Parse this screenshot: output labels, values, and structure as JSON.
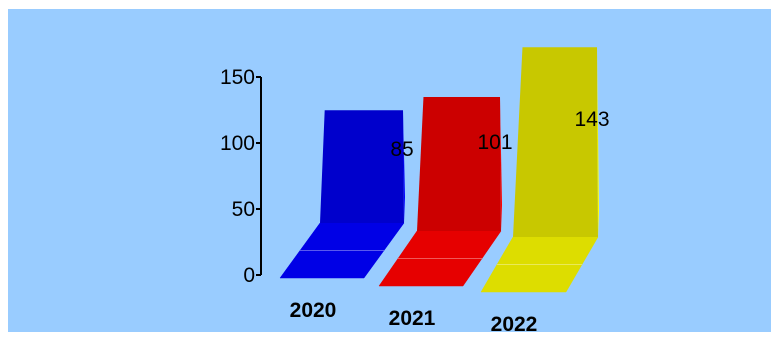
{
  "chart_data": {
    "type": "bar",
    "title": "",
    "xlabel": "",
    "ylabel": "",
    "categories": [
      "2020",
      "2021",
      "2022"
    ],
    "values": [
      85,
      101,
      143
    ],
    "data_labels": [
      "85",
      "101",
      "143"
    ],
    "yticks": [
      0,
      50,
      100,
      150
    ],
    "ytick_labels": [
      "0",
      "50",
      "100",
      "150"
    ],
    "ylim": [
      0,
      150
    ],
    "grid": false,
    "legend": "none",
    "style": "3d-ribbon",
    "colors": {
      "background": "#99ccff",
      "bars": [
        {
          "front": "#0000cc",
          "side": "#0000ff",
          "floor": "#0000e6"
        },
        {
          "front": "#cc0000",
          "side": "#ff0000",
          "floor": "#e60000"
        },
        {
          "front": "#c8c800",
          "side": "#ffff00",
          "floor": "#dddd00"
        }
      ]
    }
  }
}
